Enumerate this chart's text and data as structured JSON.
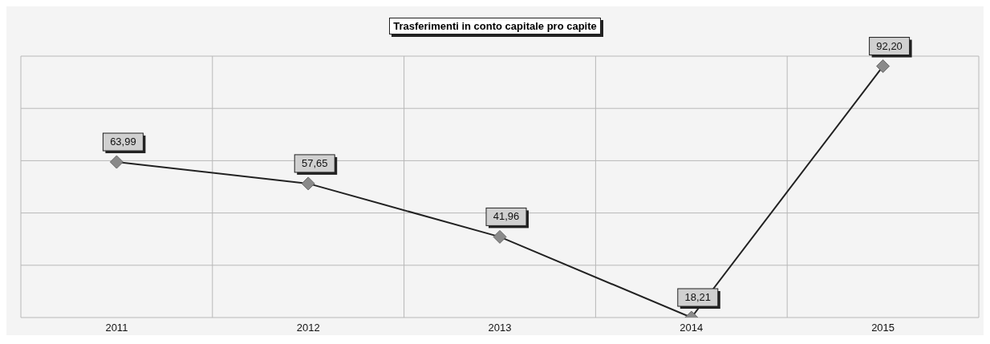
{
  "chart_data": {
    "type": "line",
    "title": "Trasferimenti in conto capitale pro capite",
    "categories": [
      "2011",
      "2012",
      "2013",
      "2014",
      "2015"
    ],
    "series": [
      {
        "color": "#222222",
        "values": [
          63.99,
          57.65,
          41.96,
          18.21,
          92.2
        ],
        "value_labels": [
          "63,99",
          "57,65",
          "41,96",
          "18,21",
          "92,20"
        ]
      }
    ],
    "grid": true,
    "marker": "diamond",
    "line_style": "solid",
    "tick_labels": "x"
  }
}
